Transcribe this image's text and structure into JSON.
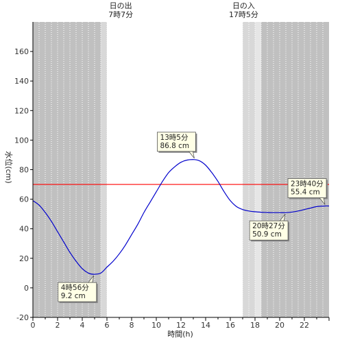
{
  "chart_data": {
    "type": "line",
    "xlabel": "時間(h)",
    "ylabel": "水位(cm)",
    "xlim": [
      0,
      24
    ],
    "ylim": [
      -20,
      180
    ],
    "xticks": [
      0,
      2,
      4,
      6,
      8,
      10,
      12,
      14,
      16,
      18,
      20,
      22
    ],
    "yticks": [
      -20,
      0,
      20,
      40,
      60,
      80,
      100,
      120,
      140,
      160
    ],
    "grid": "vertical-dotted",
    "night_shading": [
      {
        "from": 0,
        "to": 5.5,
        "shade": "night",
        "color": "#c0c0c0"
      },
      {
        "from": 5.5,
        "to": 6.0,
        "shade": "twilight",
        "color": "#d8d8d8"
      },
      {
        "from": 17.0,
        "to": 18.0,
        "shade": "twilight",
        "color": "#d8d8d8"
      },
      {
        "from": 18.5,
        "to": 24,
        "shade": "night",
        "color": "#c0c0c0"
      },
      {
        "from": 18.0,
        "to": 18.5,
        "shade": "twilight",
        "color": "#e6e6e6"
      }
    ],
    "reference_line": {
      "value": 70,
      "color": "#ff0000"
    },
    "series": [
      {
        "color": "#0000cc",
        "x": [
          0,
          0.5,
          1,
          1.5,
          2,
          2.5,
          3,
          3.5,
          4,
          4.5,
          4.93,
          5.5,
          6,
          6.5,
          7,
          7.5,
          8,
          8.5,
          9,
          9.5,
          10,
          10.5,
          11,
          11.5,
          12,
          12.5,
          13.08,
          13.5,
          14,
          14.5,
          15,
          15.5,
          16,
          16.5,
          17,
          17.5,
          18,
          18.5,
          19,
          19.5,
          20,
          20.45,
          21,
          21.5,
          22,
          22.5,
          23,
          23.67,
          24
        ],
        "y": [
          59,
          56,
          51,
          45,
          38,
          31,
          24,
          18,
          13,
          10,
          9.2,
          10,
          14,
          18,
          23,
          29,
          36,
          43,
          51,
          58,
          65,
          72,
          78,
          82,
          85,
          86.5,
          86.8,
          86,
          83,
          78,
          72,
          65,
          59,
          55,
          53,
          52,
          51.5,
          51.2,
          51,
          50.9,
          50.9,
          50.9,
          51.3,
          52,
          53,
          54,
          55,
          55.4,
          55.4
        ]
      }
    ],
    "sun": {
      "sunrise": {
        "title": "日の出",
        "time": "7時7分",
        "x": 7.12
      },
      "sunset": {
        "title": "日の入",
        "time": "17時5分",
        "x": 17.08
      }
    },
    "annotations": [
      {
        "time": "4時56分",
        "value": "9.2 cm",
        "x": 4.93,
        "y": 9.2,
        "placement": "below"
      },
      {
        "time": "13時5分",
        "value": "86.8 cm",
        "x": 13.08,
        "y": 86.8,
        "placement": "above"
      },
      {
        "time": "20時27分",
        "value": "50.9 cm",
        "x": 20.45,
        "y": 50.9,
        "placement": "below"
      },
      {
        "time": "23時40分",
        "value": "55.4 cm",
        "x": 23.67,
        "y": 55.4,
        "placement": "above"
      }
    ]
  }
}
